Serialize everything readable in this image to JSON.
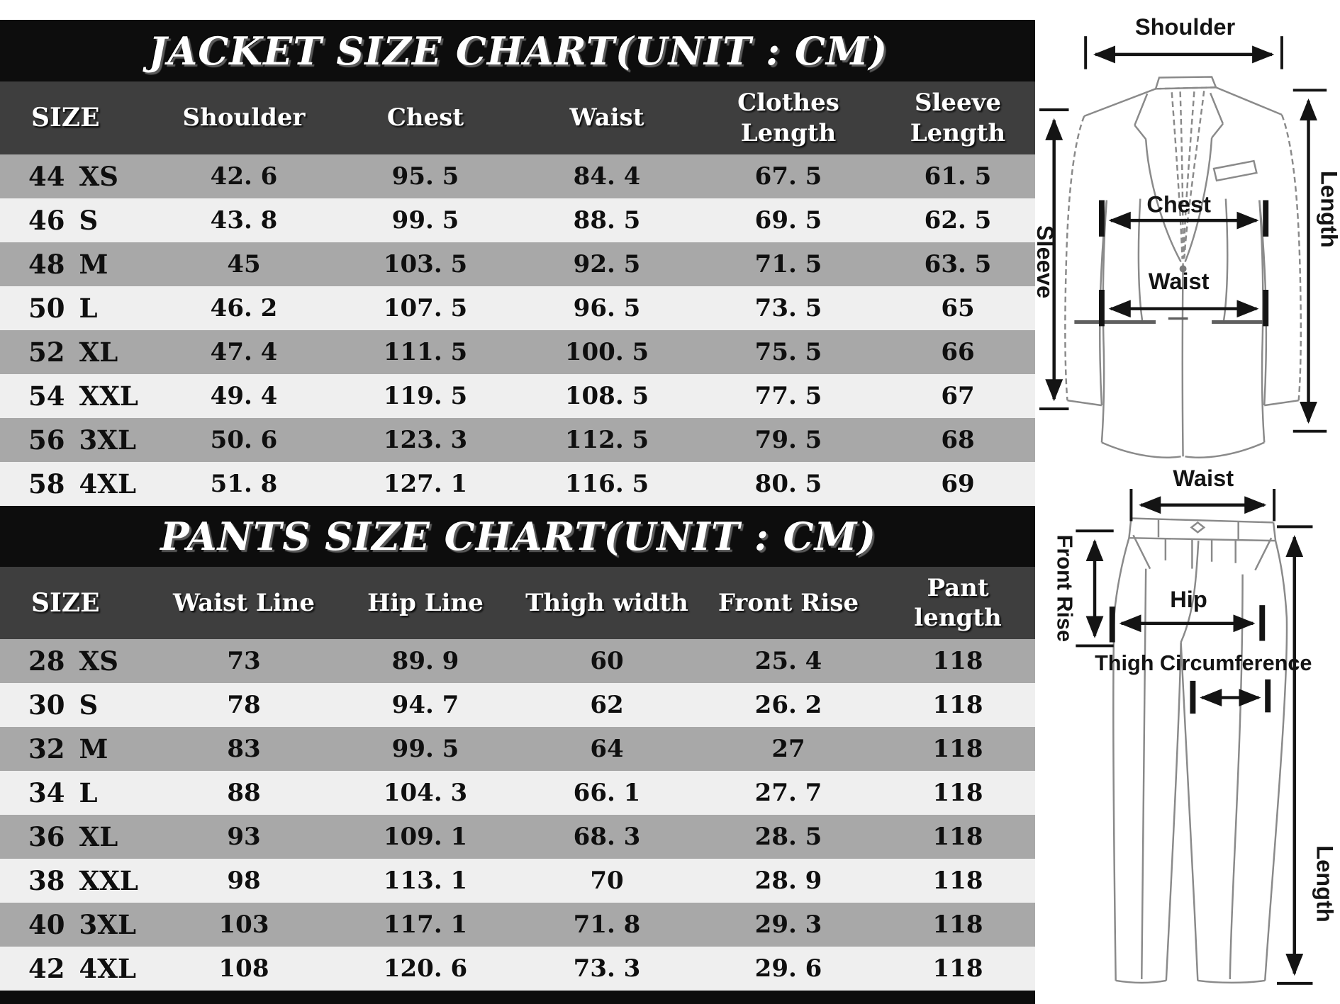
{
  "colors": {
    "band_black": "#0d0d0d",
    "header_gray": "#3e3e3e",
    "row_dark": "#a8a8a8",
    "row_light": "#efefef",
    "header_text": "#ffffff",
    "row_text": "#0f0f0f",
    "sketch_line": "#8a8a8a",
    "arrow_line": "#141414"
  },
  "chart_data": [
    {
      "type": "table",
      "title": "JACKET SIZE CHART(UNIT : CM)",
      "unit": "cm",
      "columns": [
        "SIZE",
        "Shoulder",
        "Chest",
        "Waist",
        "Clothes\nLength",
        "Sleeve\nLength"
      ],
      "rows": [
        {
          "size_num": "44",
          "size_code": "XS",
          "values": [
            "42.6",
            "95.5",
            "84.4",
            "67.5",
            "61.5"
          ]
        },
        {
          "size_num": "46",
          "size_code": "S",
          "values": [
            "43.8",
            "99.5",
            "88.5",
            "69.5",
            "62.5"
          ]
        },
        {
          "size_num": "48",
          "size_code": "M",
          "values": [
            "45",
            "103.5",
            "92.5",
            "71.5",
            "63.5"
          ]
        },
        {
          "size_num": "50",
          "size_code": "L",
          "values": [
            "46.2",
            "107.5",
            "96.5",
            "73.5",
            "65"
          ]
        },
        {
          "size_num": "52",
          "size_code": "XL",
          "values": [
            "47.4",
            "111.5",
            "100.5",
            "75.5",
            "66"
          ]
        },
        {
          "size_num": "54",
          "size_code": "XXL",
          "values": [
            "49.4",
            "119.5",
            "108.5",
            "77.5",
            "67"
          ]
        },
        {
          "size_num": "56",
          "size_code": "3XL",
          "values": [
            "50.6",
            "123.3",
            "112.5",
            "79.5",
            "68"
          ]
        },
        {
          "size_num": "58",
          "size_code": "4XL",
          "values": [
            "51.8",
            "127.1",
            "116.5",
            "80.5",
            "69"
          ]
        }
      ]
    },
    {
      "type": "table",
      "title": "PANTS SIZE CHART(UNIT : CM)",
      "unit": "cm",
      "columns": [
        "SIZE",
        "Waist Line",
        "Hip Line",
        "Thigh width",
        "Front Rise",
        "Pant length"
      ],
      "rows": [
        {
          "size_num": "28",
          "size_code": "XS",
          "values": [
            "73",
            "89.9",
            "60",
            "25.4",
            "118"
          ]
        },
        {
          "size_num": "30",
          "size_code": "S",
          "values": [
            "78",
            "94.7",
            "62",
            "26.2",
            "118"
          ]
        },
        {
          "size_num": "32",
          "size_code": "M",
          "values": [
            "83",
            "99.5",
            "64",
            "27",
            "118"
          ]
        },
        {
          "size_num": "34",
          "size_code": "L",
          "values": [
            "88",
            "104.3",
            "66.1",
            "27.7",
            "118"
          ]
        },
        {
          "size_num": "36",
          "size_code": "XL",
          "values": [
            "93",
            "109.1",
            "68.3",
            "28.5",
            "118"
          ]
        },
        {
          "size_num": "38",
          "size_code": "XXL",
          "values": [
            "98",
            "113.1",
            "70",
            "28.9",
            "118"
          ]
        },
        {
          "size_num": "40",
          "size_code": "3XL",
          "values": [
            "103",
            "117.1",
            "71.8",
            "29.3",
            "118"
          ]
        },
        {
          "size_num": "42",
          "size_code": "4XL",
          "values": [
            "108",
            "120.6",
            "73.3",
            "29.6",
            "118"
          ]
        }
      ]
    }
  ],
  "jacket_diagram": {
    "labels": {
      "shoulder": "Shoulder",
      "sleeve": "Sleeve",
      "chest": "Chest",
      "waist": "Waist",
      "length": "Length"
    }
  },
  "pants_diagram": {
    "labels": {
      "waist": "Waist",
      "front_rise": "Front Rise",
      "hip": "Hip",
      "thigh": "Thigh Circumference",
      "length": "Length"
    }
  }
}
